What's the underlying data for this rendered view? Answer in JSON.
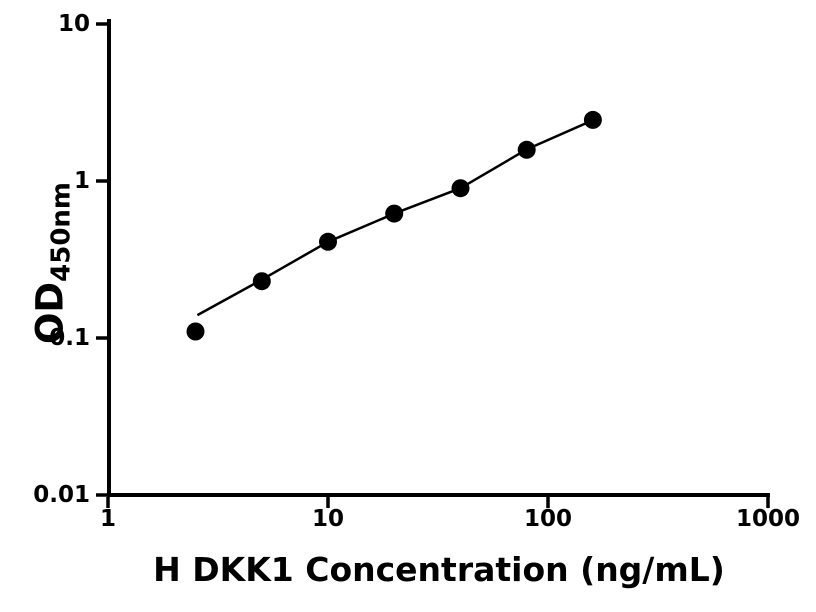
{
  "chart_data": {
    "type": "scatter",
    "title": "",
    "xlabel": "H DKK1 Concentration (ng/mL)",
    "ylabel_main": "OD",
    "ylabel_sub": "450nm",
    "x_scale": "log10",
    "y_scale": "log10",
    "xlim": [
      1,
      1000
    ],
    "ylim": [
      0.01,
      10
    ],
    "grid": false,
    "legend": null,
    "x_ticks": [
      {
        "value": 1,
        "label": "1"
      },
      {
        "value": 10,
        "label": "10"
      },
      {
        "value": 100,
        "label": "100"
      },
      {
        "value": 1000,
        "label": "1000"
      }
    ],
    "y_ticks": [
      {
        "value": 10,
        "label": "10"
      },
      {
        "value": 1,
        "label": "1"
      },
      {
        "value": 0.1,
        "label": "0.1"
      },
      {
        "value": 0.01,
        "label": "0.01"
      }
    ],
    "points": [
      {
        "x": 2.5,
        "y": 0.11
      },
      {
        "x": 5,
        "y": 0.23
      },
      {
        "x": 10,
        "y": 0.41
      },
      {
        "x": 20,
        "y": 0.62
      },
      {
        "x": 40,
        "y": 0.9
      },
      {
        "x": 80,
        "y": 1.58
      },
      {
        "x": 160,
        "y": 2.45
      }
    ],
    "fit_line": [
      [
        2.55,
        0.14
      ],
      [
        5,
        0.235
      ],
      [
        10,
        0.41
      ],
      [
        20,
        0.62
      ],
      [
        40,
        0.9
      ],
      [
        80,
        1.59
      ],
      [
        160,
        2.44
      ]
    ],
    "marker_color": "#000000",
    "line_color": "#000000",
    "axis_color": "#000000",
    "background_color": "#ffffff"
  }
}
